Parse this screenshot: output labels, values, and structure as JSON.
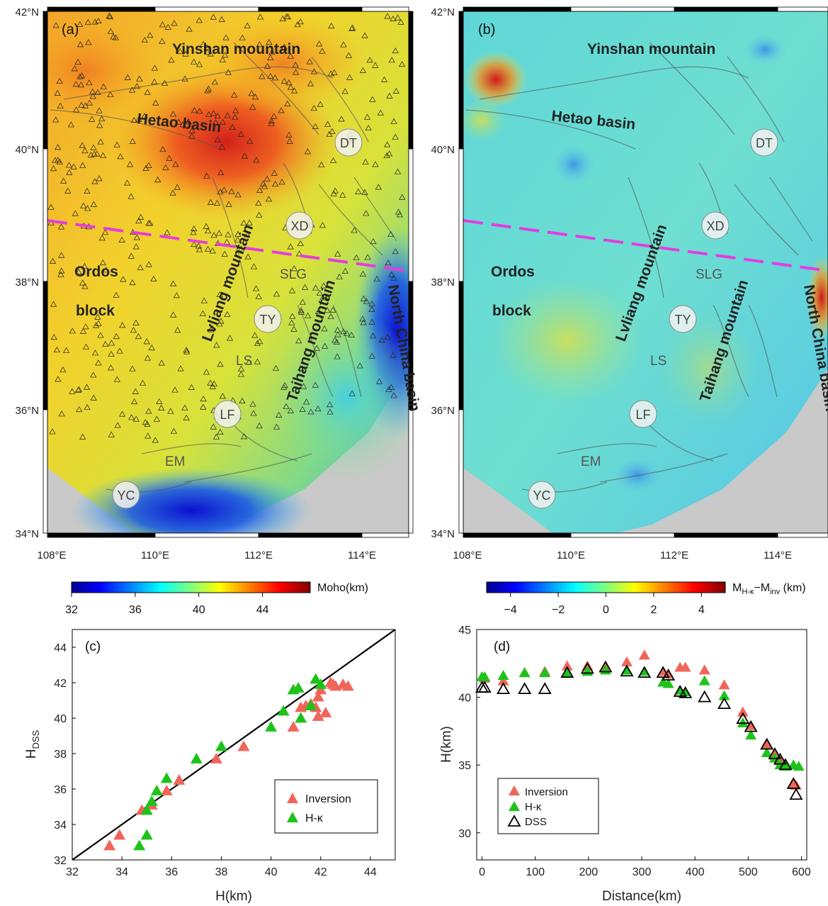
{
  "maps": [
    {
      "panel_label": "(a)",
      "region_labels": [
        "Yinshan mountain",
        "Hetao basin",
        "Ordos",
        "block",
        "Lvliang mountain",
        "Taihang mountain",
        "North China basin"
      ],
      "stations": [
        "DT",
        "XD",
        "TY",
        "LF",
        "YC"
      ],
      "basins": [
        "SLG",
        "LS",
        "EM"
      ],
      "colorbar": {
        "label": "Moho(km)",
        "ticks": [
          "32",
          "36",
          "40",
          "44"
        ],
        "range": [
          32,
          47
        ]
      }
    },
    {
      "panel_label": "(b)",
      "region_labels": [
        "Yinshan mountain",
        "Hetao basin",
        "Ordos",
        "block",
        "Lvliang mountain",
        "Taihang mountain",
        "North China basin"
      ],
      "stations": [
        "DT",
        "XD",
        "TY",
        "LF",
        "YC"
      ],
      "basins": [
        "SLG",
        "LS",
        "EM"
      ],
      "colorbar": {
        "label_main": "M",
        "label_sub1": "H-κ",
        "label_mid": "−M",
        "label_sub2": "inv",
        "label_unit": " (km)",
        "ticks": [
          "−4",
          "−2",
          "0",
          "2",
          "4"
        ],
        "range": [
          -5,
          5
        ]
      }
    }
  ],
  "map_axes": {
    "lat_ticks": [
      "42°N",
      "40°N",
      "38°N",
      "36°N",
      "34°N"
    ],
    "lon_ticks": [
      "108°E",
      "110°E",
      "112°E",
      "114°E"
    ],
    "lat_range": [
      34,
      42
    ],
    "lon_range": [
      108,
      115
    ]
  },
  "chart_data": [
    {
      "type": "scatter",
      "panel_label": "(c)",
      "xlabel": "H(km)",
      "ylabel_main": "H",
      "ylabel_sub": "DSS",
      "xlim": [
        32,
        45
      ],
      "ylim": [
        32,
        45
      ],
      "xticks": [
        32,
        34,
        36,
        38,
        40,
        42,
        44
      ],
      "yticks": [
        32,
        34,
        36,
        38,
        40,
        42,
        44
      ],
      "reference_line": [
        [
          32,
          32
        ],
        [
          45,
          45
        ]
      ],
      "legend_position": "right",
      "series": [
        {
          "name": "Inversion",
          "color": "#f0655a",
          "points": [
            [
              33.5,
              32.8
            ],
            [
              33.9,
              33.4
            ],
            [
              34.8,
              34.8
            ],
            [
              35.2,
              35.1
            ],
            [
              35.8,
              35.9
            ],
            [
              36.3,
              36.5
            ],
            [
              37.8,
              37.7
            ],
            [
              38.9,
              38.4
            ],
            [
              40.9,
              39.5
            ],
            [
              41.2,
              40.6
            ],
            [
              41.4,
              40.7
            ],
            [
              41.6,
              40.8
            ],
            [
              41.8,
              40.6
            ],
            [
              41.9,
              41.2
            ],
            [
              41.9,
              40.1
            ],
            [
              42.0,
              41.6
            ],
            [
              42.2,
              40.3
            ],
            [
              42.4,
              42.0
            ],
            [
              42.6,
              41.8
            ],
            [
              42.9,
              41.9
            ],
            [
              43.1,
              41.8
            ],
            [
              42.5,
              41.9
            ]
          ]
        },
        {
          "name": "H-κ",
          "color": "#1ec31a",
          "points": [
            [
              34.7,
              32.8
            ],
            [
              35.0,
              33.4
            ],
            [
              35.0,
              34.8
            ],
            [
              35.2,
              35.3
            ],
            [
              35.4,
              35.9
            ],
            [
              35.8,
              36.6
            ],
            [
              37.0,
              37.7
            ],
            [
              38.0,
              38.4
            ],
            [
              40.0,
              39.5
            ],
            [
              40.5,
              40.4
            ],
            [
              40.9,
              41.6
            ],
            [
              41.1,
              41.7
            ],
            [
              41.2,
              40.0
            ],
            [
              41.6,
              40.7
            ],
            [
              41.8,
              42.2
            ],
            [
              42.0,
              41.9
            ]
          ]
        }
      ]
    },
    {
      "type": "scatter",
      "panel_label": "(d)",
      "xlabel": "Distance(km)",
      "ylabel": "H(km)",
      "xlim": [
        -10,
        610
      ],
      "ylim": [
        28,
        45
      ],
      "xticks": [
        0,
        100,
        200,
        300,
        400,
        500,
        600
      ],
      "yticks": [
        30,
        35,
        40,
        45
      ],
      "legend_position": "bottom-left",
      "series": [
        {
          "name": "Inversion",
          "color": "#f0655a",
          "points": [
            [
              0,
              41.5
            ],
            [
              5,
              41.4
            ],
            [
              40,
              41.2
            ],
            [
              80,
              41.8
            ],
            [
              118,
              41.9
            ],
            [
              160,
              42.3
            ],
            [
              198,
              42.3
            ],
            [
              232,
              42.3
            ],
            [
              272,
              42.6
            ],
            [
              305,
              43.1
            ],
            [
              340,
              41.9
            ],
            [
              350,
              41.7
            ],
            [
              372,
              42.2
            ],
            [
              382,
              42.2
            ],
            [
              418,
              42.0
            ],
            [
              455,
              40.9
            ],
            [
              490,
              38.9
            ],
            [
              505,
              37.9
            ],
            [
              535,
              36.5
            ],
            [
              550,
              35.7
            ],
            [
              560,
              35.3
            ],
            [
              570,
              35.0
            ],
            [
              585,
              33.6
            ],
            [
              590,
              33.5
            ]
          ]
        },
        {
          "name": "H-κ",
          "color": "#1ec31a",
          "points": [
            [
              0,
              41.5
            ],
            [
              5,
              41.5
            ],
            [
              40,
              41.6
            ],
            [
              80,
              41.8
            ],
            [
              118,
              41.8
            ],
            [
              160,
              41.8
            ],
            [
              198,
              41.9
            ],
            [
              232,
              42.0
            ],
            [
              272,
              42.0
            ],
            [
              305,
              41.9
            ],
            [
              340,
              41.1
            ],
            [
              350,
              41.0
            ],
            [
              372,
              40.5
            ],
            [
              382,
              40.4
            ],
            [
              418,
              41.2
            ],
            [
              455,
              40.1
            ],
            [
              490,
              38.1
            ],
            [
              505,
              37.2
            ],
            [
              535,
              35.9
            ],
            [
              550,
              35.5
            ],
            [
              560,
              35.0
            ],
            [
              570,
              34.9
            ],
            [
              585,
              35.0
            ],
            [
              595,
              34.9
            ]
          ]
        },
        {
          "name": "DSS",
          "color": "#000000",
          "points": [
            [
              0,
              40.7
            ],
            [
              5,
              40.7
            ],
            [
              40,
              40.6
            ],
            [
              80,
              40.6
            ],
            [
              118,
              40.6
            ],
            [
              160,
              41.8
            ],
            [
              198,
              42.1
            ],
            [
              232,
              42.2
            ],
            [
              272,
              41.9
            ],
            [
              305,
              41.8
            ],
            [
              340,
              41.8
            ],
            [
              350,
              41.6
            ],
            [
              372,
              40.4
            ],
            [
              382,
              40.3
            ],
            [
              418,
              40.0
            ],
            [
              455,
              39.5
            ],
            [
              490,
              38.4
            ],
            [
              505,
              37.8
            ],
            [
              535,
              36.5
            ],
            [
              550,
              35.8
            ],
            [
              560,
              35.4
            ],
            [
              570,
              35.0
            ],
            [
              585,
              33.6
            ],
            [
              590,
              32.8
            ]
          ]
        }
      ]
    }
  ]
}
